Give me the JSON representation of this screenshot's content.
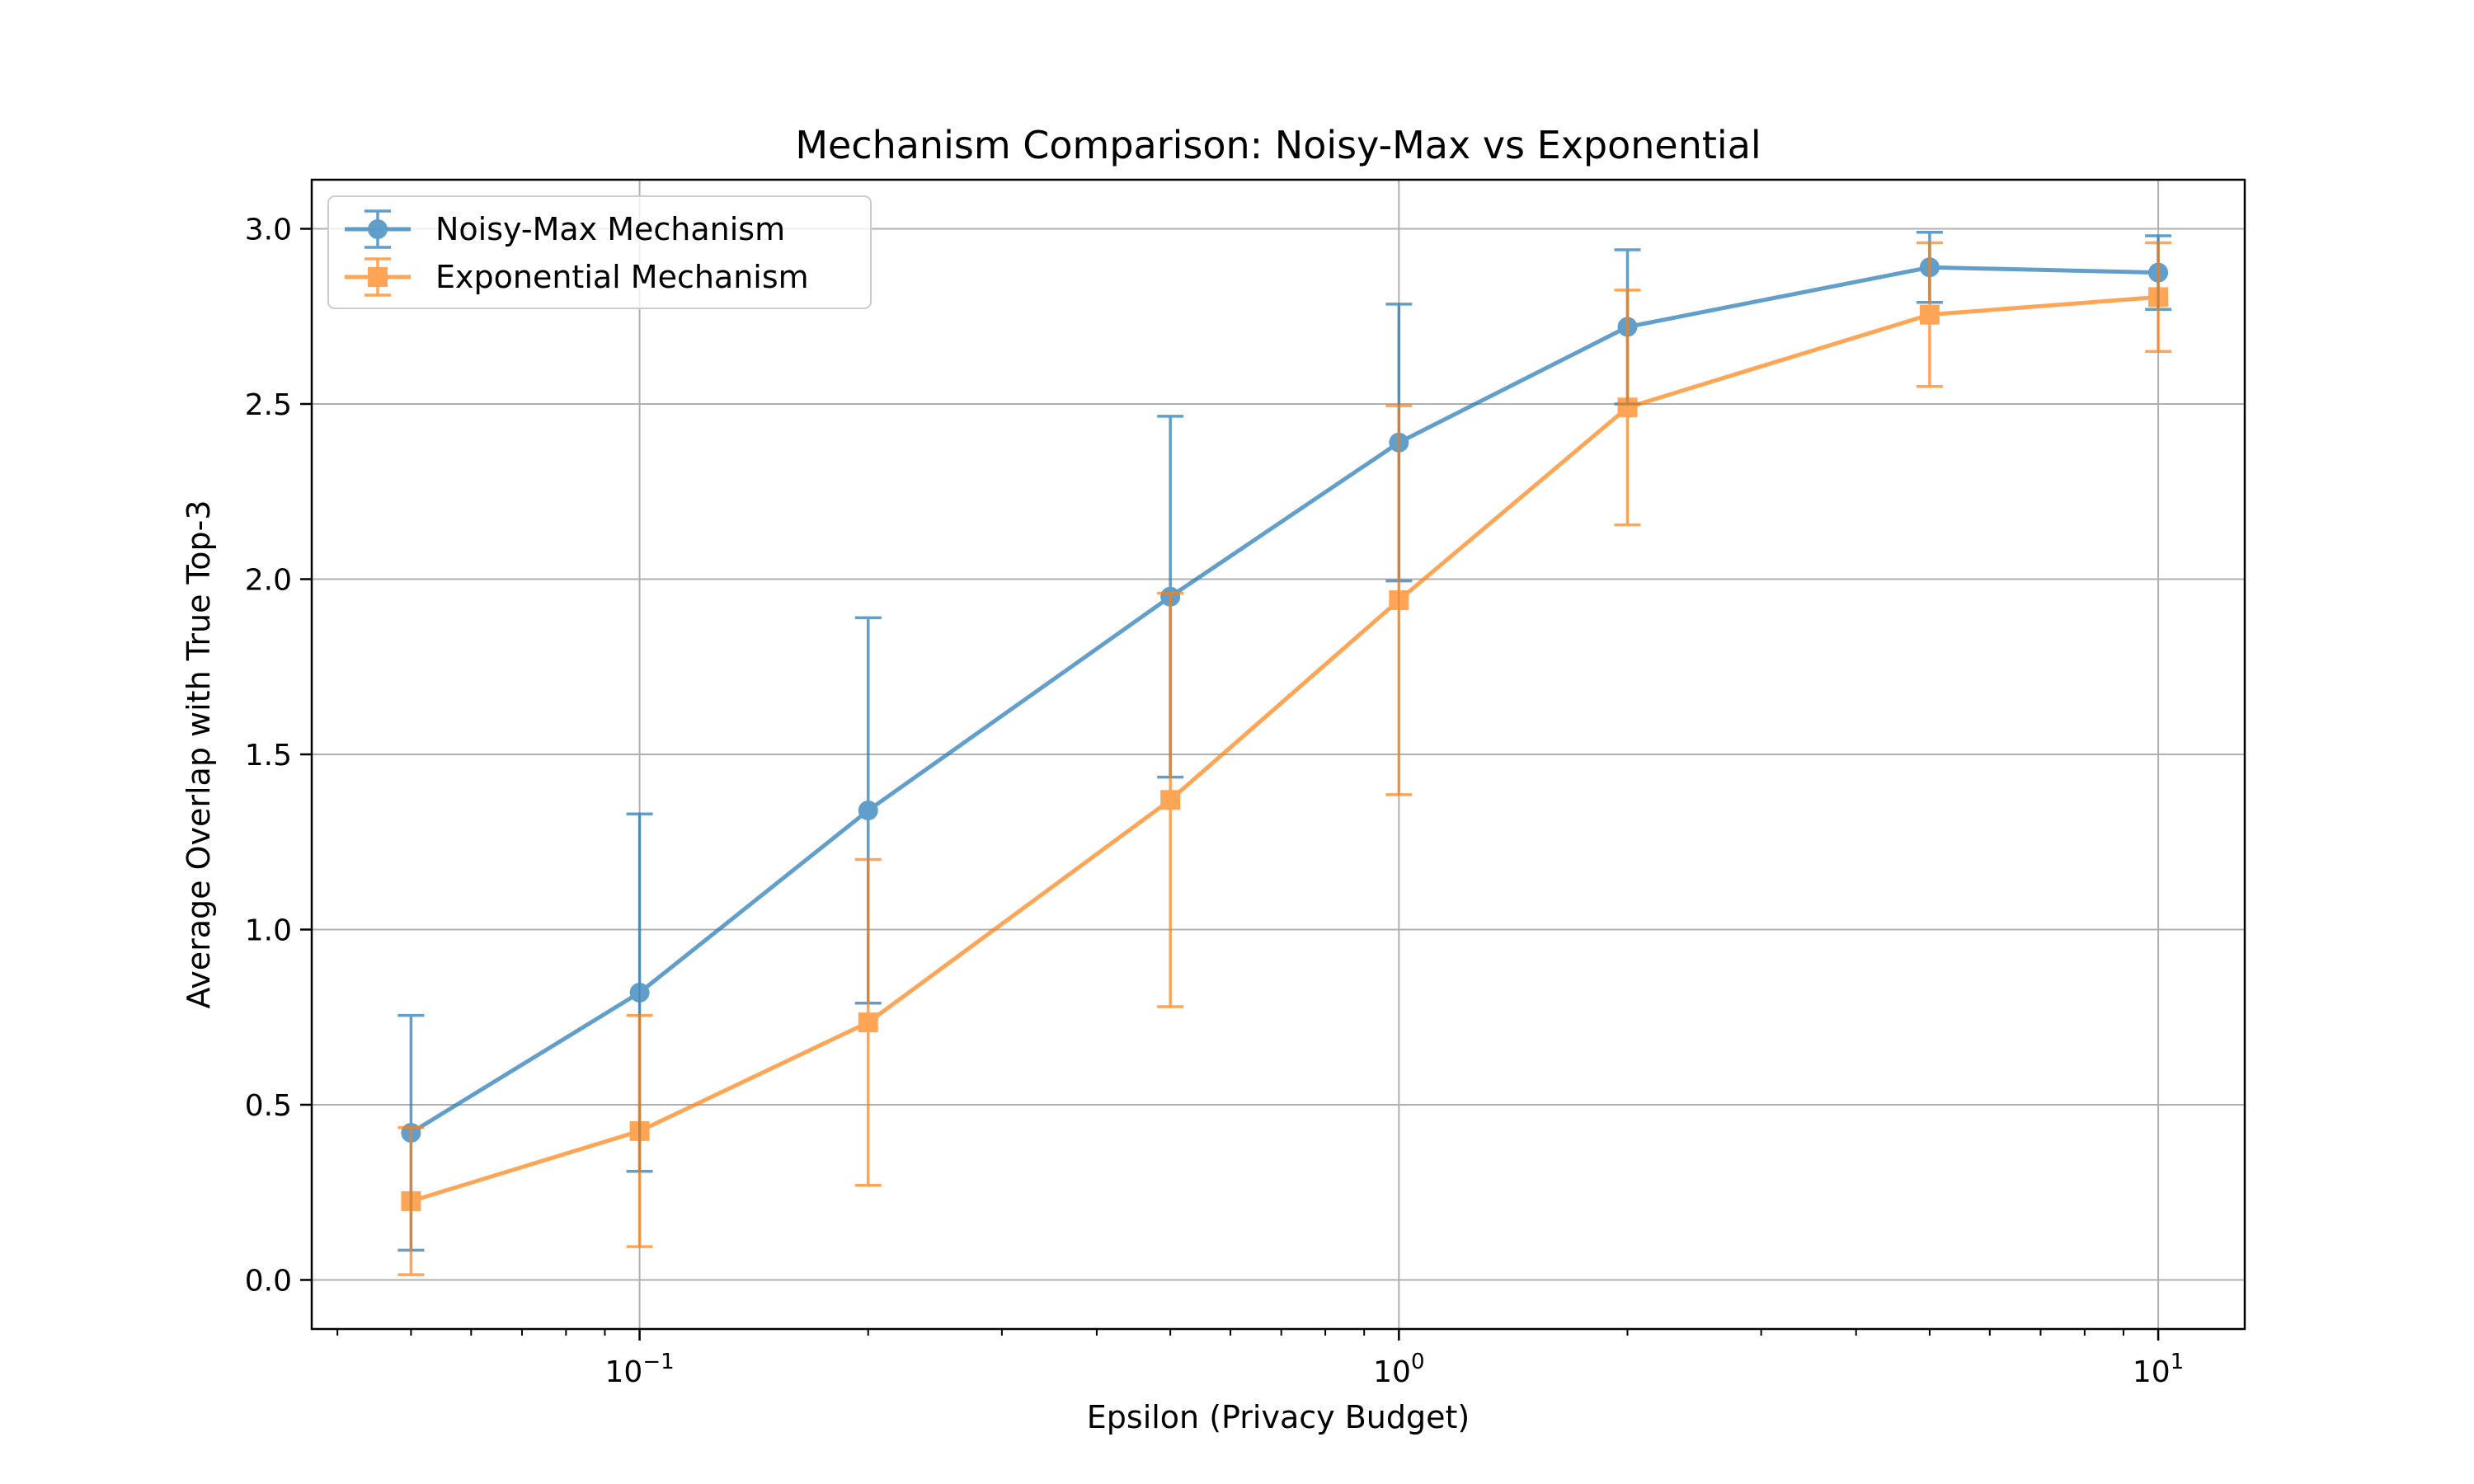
{
  "chart_data": {
    "type": "line",
    "title": "Mechanism Comparison: Noisy-Max vs Exponential",
    "xlabel": "Epsilon (Privacy Budget)",
    "ylabel": "Average Overlap with True Top-3",
    "xscale": "log",
    "xlim": [
      0.037,
      13
    ],
    "ylim": [
      -0.14,
      3.14
    ],
    "xticks": [
      {
        "value": 0.1,
        "base": "10",
        "exp": "−1"
      },
      {
        "value": 1,
        "base": "10",
        "exp": "0"
      },
      {
        "value": 10,
        "base": "10",
        "exp": "1"
      }
    ],
    "yticks": [
      0.0,
      0.5,
      1.0,
      1.5,
      2.0,
      2.5,
      3.0
    ],
    "ytick_labels": [
      "0.0",
      "0.5",
      "1.0",
      "1.5",
      "2.0",
      "2.5",
      "3.0"
    ],
    "grid": true,
    "legend_position": "upper-left",
    "x": [
      0.05,
      0.1,
      0.2,
      0.5,
      1,
      2,
      5,
      10
    ],
    "series": [
      {
        "name": "Noisy-Max Mechanism",
        "color": "#1f77b4",
        "marker": "circle",
        "values": [
          0.42,
          0.82,
          1.34,
          1.95,
          2.39,
          2.72,
          2.89,
          2.875
        ],
        "errors": [
          0.335,
          0.51,
          0.55,
          0.515,
          0.395,
          0.22,
          0.1,
          0.105
        ]
      },
      {
        "name": "Exponential Mechanism",
        "color": "#ff7f0e",
        "marker": "square",
        "values": [
          0.225,
          0.425,
          0.735,
          1.37,
          1.94,
          2.49,
          2.755,
          2.805
        ],
        "errors": [
          0.21,
          0.33,
          0.465,
          0.59,
          0.555,
          0.335,
          0.205,
          0.155
        ]
      }
    ]
  }
}
